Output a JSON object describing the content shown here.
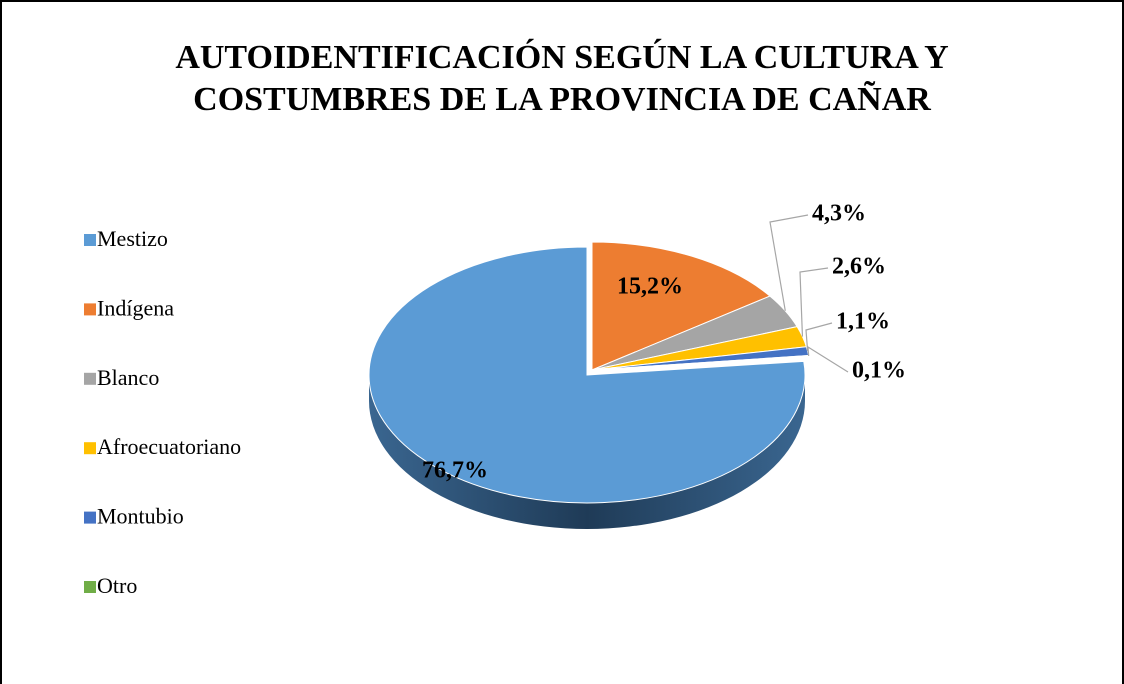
{
  "chart_data": {
    "type": "pie",
    "title": [
      "AUTOIDENTIFICACIÓN SEGÚN LA CULTURA Y",
      "COSTUMBRES DE LA PROVINCIA DE CAÑAR"
    ],
    "categories": [
      "Mestizo",
      "Indígena",
      "Blanco",
      "Afroecuatoriano",
      "Montubio",
      "Otro"
    ],
    "values": [
      76.7,
      15.2,
      4.3,
      2.6,
      1.1,
      0.1
    ],
    "value_labels": [
      "76,7%",
      "15,2%",
      "4,3%",
      "2,6%",
      "1,1%",
      "0,1%"
    ],
    "colors": [
      "#5b9bd5",
      "#ed7d31",
      "#a5a5a5",
      "#ffc000",
      "#4472c4",
      "#70ad47"
    ],
    "legend": "left"
  }
}
